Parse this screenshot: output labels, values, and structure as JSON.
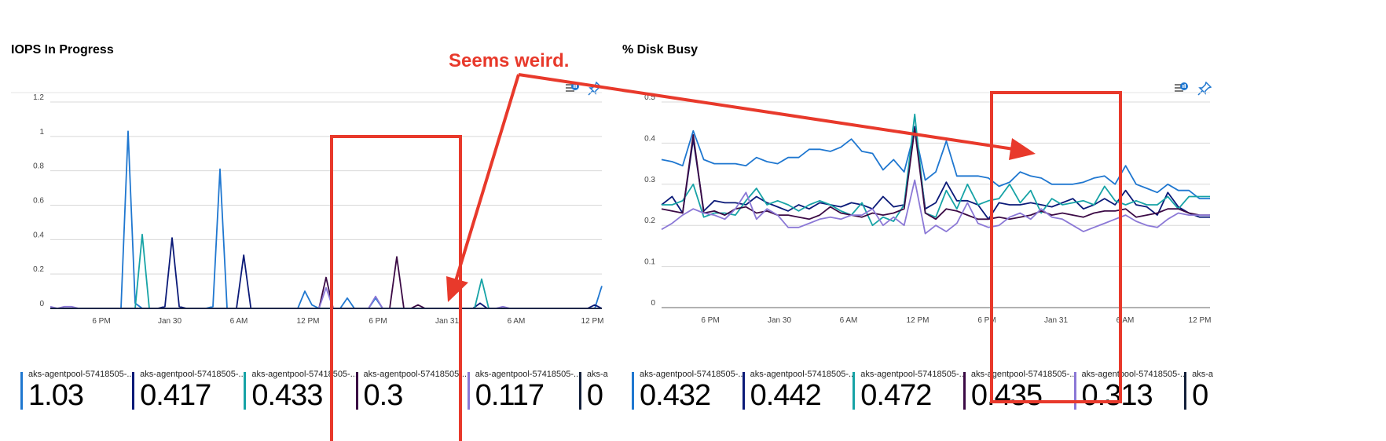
{
  "annotation": {
    "text": "Seems weird.",
    "color": "#e8392b"
  },
  "toolbar": {
    "metrics_icon": "metrics-chart-icon",
    "pin_icon": "pin-icon"
  },
  "chart_data": [
    {
      "type": "line",
      "title": "IOPS In Progress",
      "ylim": [
        0,
        1.2
      ],
      "yticks": [
        "0",
        "0.2",
        "0.4",
        "0.6",
        "0.8",
        "1",
        "1.2"
      ],
      "yticks_values": [
        0,
        0.2,
        0.4,
        0.6,
        0.8,
        1,
        1.2
      ],
      "xticks": [
        "6 PM",
        "Jan 30",
        "6 AM",
        "12 PM",
        "6 PM",
        "Jan 31",
        "6 AM",
        "12 PM"
      ],
      "grid": true,
      "legend_position": "bottom",
      "series": [
        {
          "name": "aks-agentpool-57418505-...",
          "value_label": "1.03",
          "color": "#1f77d0",
          "values": [
            0,
            0,
            0,
            0,
            0,
            0,
            0,
            0,
            0,
            0,
            0,
            1.03,
            0.03,
            0,
            0,
            0,
            0,
            0,
            0,
            0,
            0,
            0,
            0,
            0.01,
            0.81,
            0,
            0,
            0,
            0,
            0,
            0,
            0,
            0,
            0,
            0,
            0,
            0.1,
            0.02,
            0,
            0,
            0,
            0,
            0.06,
            0,
            0,
            0,
            0.06,
            0,
            0,
            0,
            0,
            0,
            0,
            0,
            0,
            0,
            0,
            0,
            0,
            0,
            0,
            0,
            0,
            0,
            0,
            0,
            0,
            0,
            0,
            0,
            0,
            0,
            0,
            0,
            0,
            0,
            0,
            0,
            0.13
          ]
        },
        {
          "name": "aks-agentpool-57418505-...",
          "value_label": "0.417",
          "color": "#0b1a78",
          "values": [
            0,
            0,
            0,
            0,
            0,
            0,
            0,
            0,
            0,
            0,
            0,
            0,
            0,
            0,
            0,
            0,
            0.01,
            0.41,
            0.01,
            0,
            0,
            0,
            0,
            0,
            0,
            0,
            0,
            0.31,
            0,
            0,
            0,
            0,
            0,
            0,
            0,
            0,
            0,
            0,
            0,
            0,
            0,
            0,
            0,
            0,
            0,
            0,
            0,
            0,
            0,
            0,
            0,
            0,
            0,
            0,
            0,
            0,
            0,
            0,
            0,
            0,
            0.03,
            0,
            0,
            0,
            0,
            0,
            0,
            0,
            0,
            0,
            0,
            0,
            0,
            0,
            0,
            0,
            0.02,
            0
          ]
        },
        {
          "name": "aks-agentpool-57418505-...",
          "value_label": "0.433",
          "color": "#17a3a6",
          "values": [
            0,
            0,
            0,
            0,
            0,
            0,
            0,
            0,
            0,
            0,
            0,
            0,
            0,
            0.43,
            0,
            0,
            0,
            0,
            0,
            0,
            0,
            0,
            0,
            0,
            0,
            0,
            0,
            0,
            0,
            0,
            0,
            0,
            0,
            0,
            0,
            0,
            0,
            0,
            0,
            0,
            0,
            0,
            0,
            0,
            0,
            0,
            0,
            0,
            0,
            0,
            0,
            0,
            0,
            0,
            0,
            0,
            0,
            0,
            0,
            0,
            0,
            0.17,
            0,
            0,
            0,
            0,
            0,
            0,
            0,
            0,
            0,
            0,
            0,
            0,
            0,
            0,
            0,
            0,
            0
          ]
        },
        {
          "name": "aks-agentpool-57418505-...",
          "value_label": "0.3",
          "color": "#3b0a45",
          "values": [
            0,
            0,
            0,
            0,
            0,
            0,
            0,
            0,
            0,
            0,
            0,
            0,
            0,
            0,
            0,
            0,
            0,
            0,
            0,
            0,
            0,
            0,
            0,
            0,
            0,
            0,
            0,
            0,
            0,
            0,
            0,
            0,
            0,
            0,
            0,
            0,
            0,
            0,
            0,
            0.18,
            0,
            0,
            0,
            0,
            0,
            0,
            0,
            0,
            0,
            0.3,
            0,
            0,
            0.02,
            0,
            0,
            0,
            0,
            0,
            0,
            0,
            0,
            0,
            0,
            0,
            0,
            0,
            0,
            0,
            0,
            0,
            0,
            0,
            0,
            0,
            0,
            0,
            0,
            0,
            0
          ]
        },
        {
          "name": "aks-agentpool-57418505-...",
          "value_label": "0.117",
          "color": "#8b78d6",
          "values": [
            0.01,
            0,
            0.01,
            0.01,
            0,
            0,
            0,
            0,
            0,
            0,
            0,
            0,
            0,
            0,
            0,
            0,
            0,
            0,
            0,
            0,
            0,
            0,
            0,
            0,
            0,
            0,
            0,
            0,
            0,
            0,
            0,
            0,
            0,
            0,
            0,
            0,
            0,
            0,
            0,
            0.12,
            0,
            0,
            0,
            0,
            0,
            0,
            0.07,
            0,
            0,
            0,
            0,
            0,
            0,
            0,
            0,
            0,
            0,
            0,
            0,
            0,
            0,
            0,
            0,
            0,
            0.01,
            0,
            0,
            0,
            0,
            0,
            0,
            0,
            0,
            0,
            0,
            0,
            0,
            0,
            0
          ]
        },
        {
          "name": "aks-age",
          "value_label": "0",
          "color": "#13203a",
          "values": [
            0,
            0,
            0,
            0,
            0,
            0,
            0,
            0,
            0,
            0,
            0,
            0,
            0,
            0,
            0,
            0,
            0,
            0,
            0,
            0,
            0,
            0,
            0,
            0,
            0,
            0,
            0,
            0,
            0,
            0,
            0,
            0,
            0,
            0,
            0,
            0,
            0,
            0,
            0,
            0,
            0,
            0,
            0,
            0,
            0,
            0,
            0,
            0,
            0,
            0,
            0,
            0,
            0,
            0,
            0,
            0,
            0,
            0,
            0,
            0,
            0,
            0,
            0,
            0,
            0,
            0,
            0,
            0,
            0,
            0,
            0,
            0,
            0,
            0,
            0,
            0,
            0,
            0,
            0
          ]
        }
      ]
    },
    {
      "type": "line",
      "title": "% Disk Busy",
      "ylim": [
        0,
        0.5
      ],
      "yticks": [
        "0",
        "0.1",
        "0.2",
        "0.3",
        "0.4",
        "0.5"
      ],
      "yticks_values": [
        0,
        0.1,
        0.2,
        0.3,
        0.4,
        0.5
      ],
      "xticks": [
        "6 PM",
        "Jan 30",
        "6 AM",
        "12 PM",
        "6 PM",
        "Jan 31",
        "6 AM",
        "12 PM"
      ],
      "grid": true,
      "legend_position": "bottom",
      "series": [
        {
          "name": "aks-agentpool-57418505-...",
          "value_label": "0.432",
          "color": "#1f77d0",
          "values": [
            0.36,
            0.355,
            0.345,
            0.43,
            0.36,
            0.35,
            0.35,
            0.35,
            0.345,
            0.365,
            0.355,
            0.35,
            0.365,
            0.365,
            0.385,
            0.385,
            0.38,
            0.39,
            0.41,
            0.38,
            0.375,
            0.335,
            0.36,
            0.33,
            0.43,
            0.31,
            0.33,
            0.405,
            0.32,
            0.32,
            0.32,
            0.315,
            0.295,
            0.305,
            0.33,
            0.32,
            0.315,
            0.3,
            0.3,
            0.3,
            0.305,
            0.315,
            0.32,
            0.3,
            0.345,
            0.3,
            0.29,
            0.28,
            0.3,
            0.285,
            0.285,
            0.265,
            0.265
          ]
        },
        {
          "name": "aks-agentpool-57418505-...",
          "value_label": "0.442",
          "color": "#0b1a78",
          "values": [
            0.25,
            0.27,
            0.23,
            0.41,
            0.235,
            0.26,
            0.255,
            0.255,
            0.25,
            0.27,
            0.255,
            0.245,
            0.235,
            0.25,
            0.24,
            0.255,
            0.25,
            0.245,
            0.255,
            0.25,
            0.24,
            0.27,
            0.245,
            0.25,
            0.44,
            0.24,
            0.255,
            0.305,
            0.26,
            0.26,
            0.25,
            0.215,
            0.255,
            0.25,
            0.25,
            0.255,
            0.25,
            0.245,
            0.255,
            0.265,
            0.24,
            0.25,
            0.265,
            0.25,
            0.285,
            0.25,
            0.245,
            0.225,
            0.28,
            0.245,
            0.23,
            0.22,
            0.22
          ]
        },
        {
          "name": "aks-agentpool-57418505-...",
          "value_label": "0.472",
          "color": "#17a3a6",
          "values": [
            0.25,
            0.25,
            0.26,
            0.3,
            0.22,
            0.23,
            0.23,
            0.225,
            0.26,
            0.29,
            0.25,
            0.26,
            0.25,
            0.235,
            0.25,
            0.26,
            0.25,
            0.235,
            0.225,
            0.255,
            0.2,
            0.22,
            0.21,
            0.25,
            0.47,
            0.23,
            0.22,
            0.285,
            0.24,
            0.3,
            0.25,
            0.26,
            0.265,
            0.3,
            0.255,
            0.285,
            0.23,
            0.265,
            0.25,
            0.255,
            0.26,
            0.25,
            0.295,
            0.26,
            0.25,
            0.26,
            0.25,
            0.25,
            0.27,
            0.24,
            0.27,
            0.27,
            0.27
          ]
        },
        {
          "name": "aks-agentpool-57418505-...",
          "value_label": "0.435",
          "color": "#3b0a45",
          "values": [
            0.24,
            0.235,
            0.23,
            0.42,
            0.23,
            0.235,
            0.225,
            0.24,
            0.245,
            0.23,
            0.235,
            0.225,
            0.225,
            0.22,
            0.215,
            0.225,
            0.245,
            0.23,
            0.225,
            0.22,
            0.23,
            0.225,
            0.23,
            0.24,
            0.435,
            0.23,
            0.215,
            0.24,
            0.235,
            0.225,
            0.215,
            0.215,
            0.22,
            0.215,
            0.22,
            0.225,
            0.235,
            0.225,
            0.23,
            0.225,
            0.22,
            0.23,
            0.235,
            0.235,
            0.24,
            0.22,
            0.225,
            0.23,
            0.24,
            0.24,
            0.23,
            0.225,
            0.225
          ]
        },
        {
          "name": "aks-agentpool-57418505-...",
          "value_label": "0.313",
          "color": "#8b78d6",
          "values": [
            0.19,
            0.205,
            0.225,
            0.24,
            0.23,
            0.225,
            0.215,
            0.24,
            0.28,
            0.215,
            0.24,
            0.225,
            0.195,
            0.195,
            0.205,
            0.215,
            0.22,
            0.215,
            0.225,
            0.225,
            0.24,
            0.2,
            0.22,
            0.2,
            0.31,
            0.18,
            0.2,
            0.185,
            0.205,
            0.255,
            0.205,
            0.195,
            0.2,
            0.22,
            0.23,
            0.215,
            0.24,
            0.22,
            0.215,
            0.2,
            0.185,
            0.195,
            0.205,
            0.215,
            0.225,
            0.21,
            0.2,
            0.195,
            0.215,
            0.23,
            0.225,
            0.225,
            0.225
          ]
        },
        {
          "name": "aks-age",
          "value_label": "0",
          "color": "#13203a",
          "values": []
        }
      ]
    }
  ]
}
